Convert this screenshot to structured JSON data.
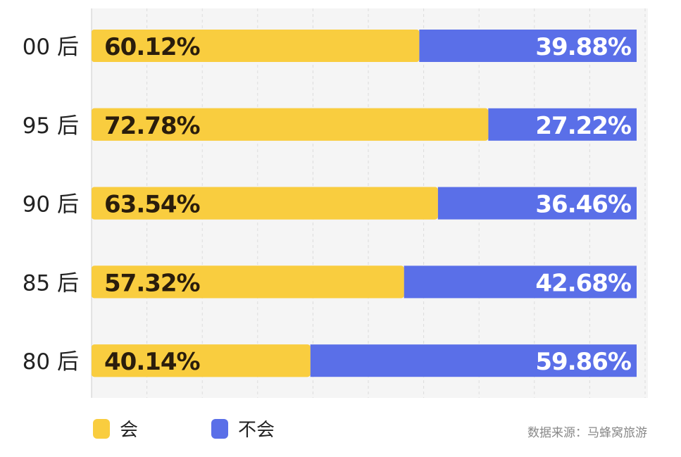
{
  "chart_data": {
    "type": "bar",
    "orientation": "horizontal",
    "stacked": true,
    "categories": [
      "00 后",
      "95 后",
      "90 后",
      "85 后",
      "80 后"
    ],
    "series": [
      {
        "name": "会",
        "color": "#f9cd3f",
        "values": [
          60.12,
          72.78,
          63.54,
          57.32,
          40.14
        ],
        "labels": [
          "60.12%",
          "72.78%",
          "63.54%",
          "57.32%",
          "40.14%"
        ]
      },
      {
        "name": "不会",
        "color": "#5a6fe8",
        "values": [
          39.88,
          27.22,
          36.46,
          42.68,
          59.86
        ],
        "labels": [
          "39.88%",
          "27.22%",
          "36.46%",
          "42.68%",
          "59.86%"
        ]
      }
    ],
    "xlim": [
      0,
      100
    ],
    "grid": true,
    "legend_position": "bottom-left",
    "source": "数据来源：马蜂窝旅游"
  }
}
